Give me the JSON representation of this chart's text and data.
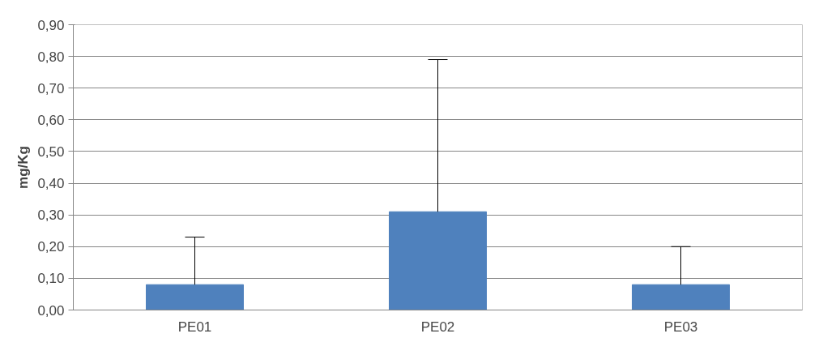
{
  "chart_data": {
    "type": "bar",
    "ylabel": "mg/Kg",
    "categories": [
      "PE01",
      "PE02",
      "PE03"
    ],
    "values": [
      0.08,
      0.31,
      0.08
    ],
    "color": "#4f81bd",
    "errors": [
      [
        0.08,
        0.23
      ],
      [
        0.31,
        0.79
      ],
      [
        0.08,
        0.2
      ]
    ],
    "ylim": [
      0,
      0.9
    ],
    "yticks": [
      {
        "value": 0,
        "label": "0,00"
      },
      {
        "value": 0.1,
        "label": "0,10"
      },
      {
        "value": 0.2,
        "label": "0,20"
      },
      {
        "value": 0.3,
        "label": "0,30"
      },
      {
        "value": 0.4,
        "label": "0,40"
      },
      {
        "value": 0.5,
        "label": "0,50"
      },
      {
        "value": 0.6,
        "label": "0,60"
      },
      {
        "value": 0.7,
        "label": "0,70"
      },
      {
        "value": 0.8,
        "label": "0,80"
      },
      {
        "value": 0.9,
        "label": "0,90"
      }
    ],
    "grid": "y"
  }
}
